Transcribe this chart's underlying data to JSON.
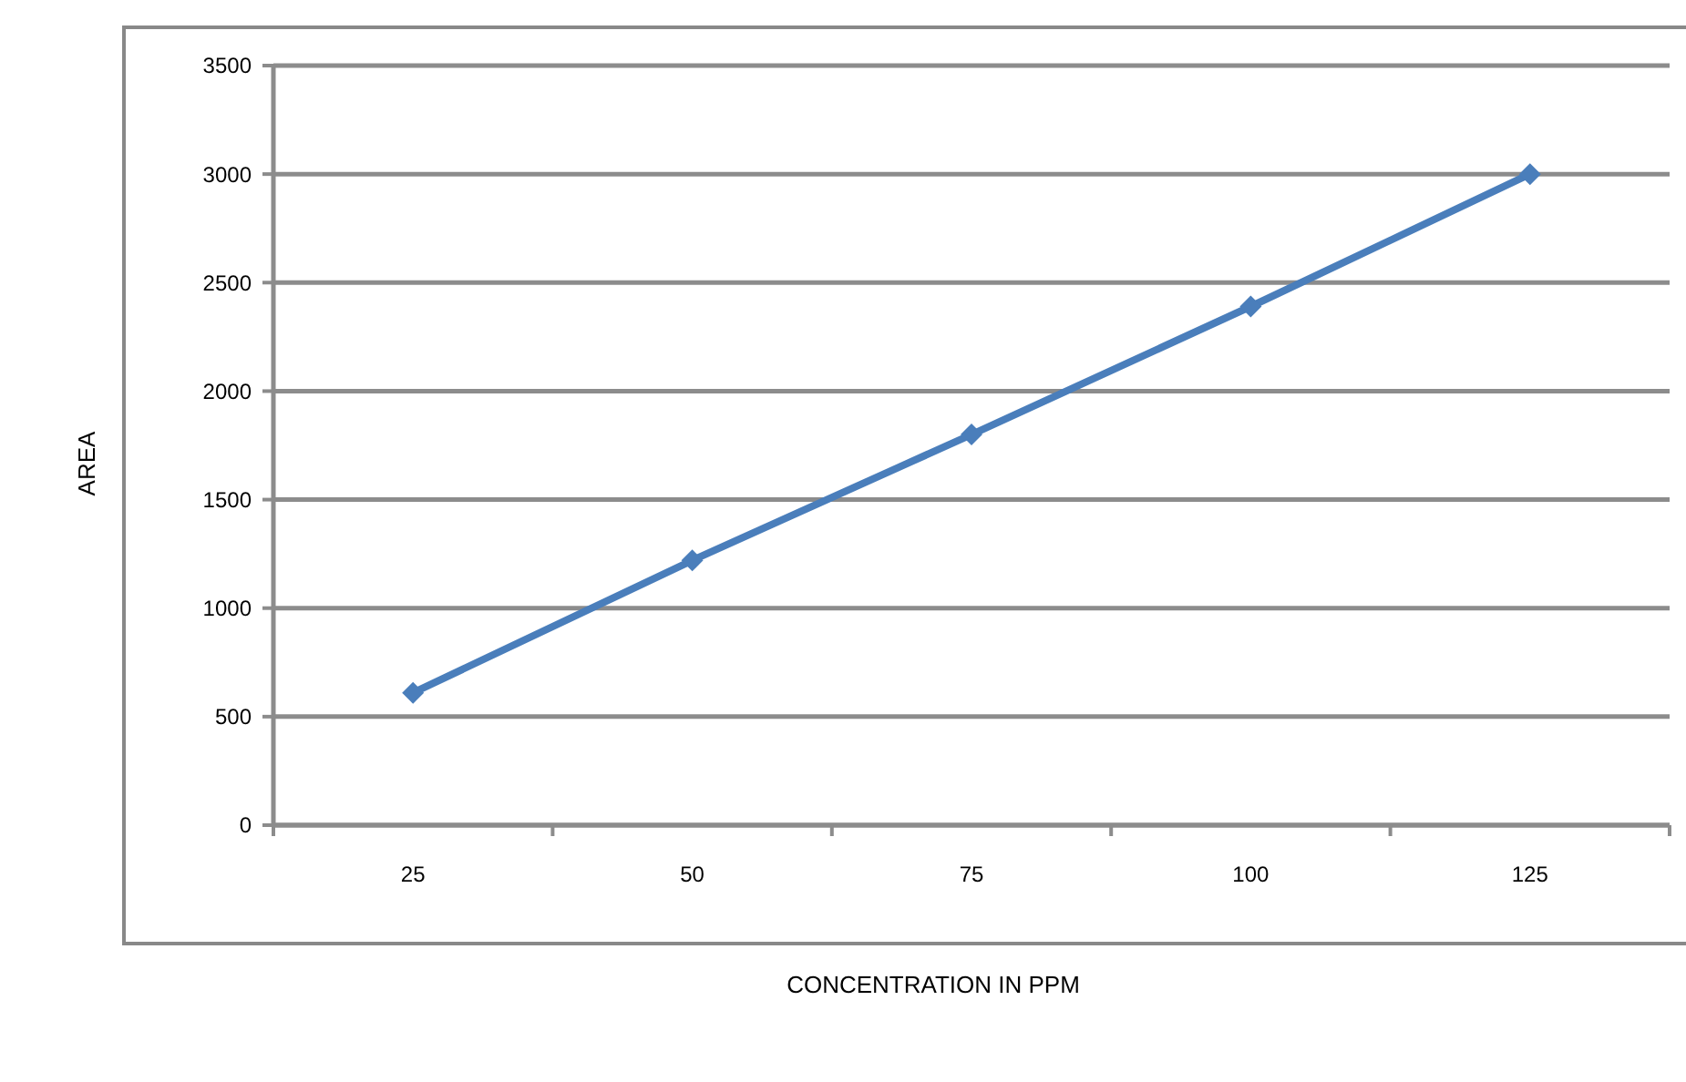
{
  "chart_data": {
    "type": "line",
    "xlabel": "CONCENTRATION IN PPM",
    "ylabel": "AREA",
    "categories": [
      "25",
      "50",
      "75",
      "100",
      "125"
    ],
    "series": [
      {
        "color": "#4a7ebb",
        "values": [
          610,
          1220,
          1800,
          2390,
          3000
        ]
      }
    ],
    "ylim": [
      0,
      3500
    ],
    "yticks": [
      0,
      500,
      1000,
      1500,
      2000,
      2500,
      3000,
      3500
    ],
    "grid": "y",
    "marker": "diamond",
    "line_style": "solid"
  }
}
